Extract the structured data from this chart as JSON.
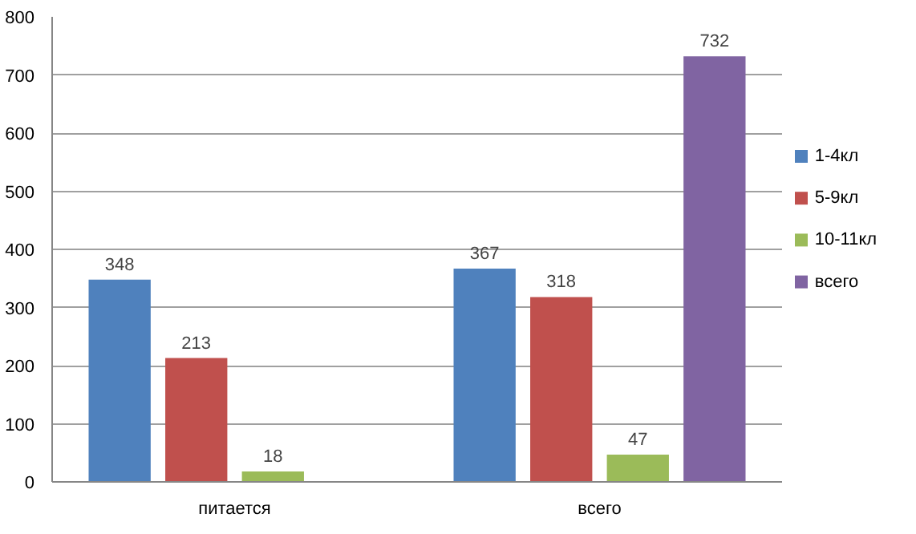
{
  "chart_data": {
    "type": "bar",
    "categories": [
      "питается",
      "всего"
    ],
    "series": [
      {
        "name": "1-4кл",
        "color": "#4f81bd",
        "values": [
          348,
          367
        ]
      },
      {
        "name": "5-9кл",
        "color": "#c0504d",
        "values": [
          213,
          318
        ]
      },
      {
        "name": "10-11кл",
        "color": "#9bbb59",
        "values": [
          18,
          47
        ]
      },
      {
        "name": "всего",
        "color": "#8064a2",
        "values": [
          null,
          732
        ]
      }
    ],
    "ylim": [
      0,
      800
    ],
    "yticks": [
      0,
      100,
      200,
      300,
      400,
      500,
      600,
      700,
      800
    ],
    "grid": "y",
    "legend": "right",
    "data_labels": true
  }
}
